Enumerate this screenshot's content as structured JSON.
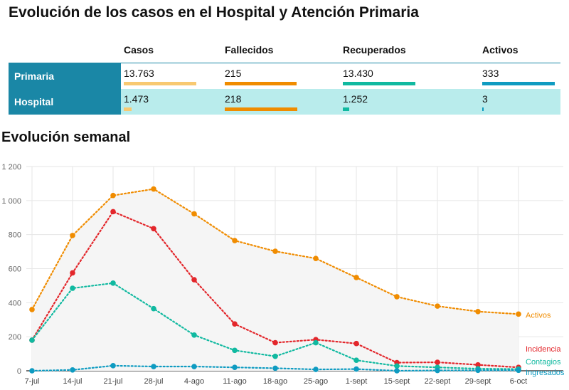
{
  "header": {
    "title": "Evolución de los casos en el Hospital y Atención Primaria"
  },
  "summary_table": {
    "columns": [
      "Casos",
      "Fallecidos",
      "Recuperados",
      "Activos"
    ],
    "column_colors": [
      "#f8c971",
      "#f08c00",
      "#10b9a0",
      "#0e9bc1"
    ],
    "rows": [
      {
        "label": "Primaria",
        "values": [
          "13.763",
          "215",
          "13.430",
          "333"
        ],
        "fractions": [
          1.0,
          0.986,
          1.0,
          1.0
        ]
      },
      {
        "label": "Hospital",
        "values": [
          "1.473",
          "218",
          "1.252",
          "3"
        ],
        "fractions": [
          0.107,
          1.0,
          0.093,
          0.009
        ]
      }
    ]
  },
  "section": {
    "subtitle": "Evolución semanal"
  },
  "chart_data": {
    "type": "line",
    "title": "",
    "xlabel": "",
    "ylabel": "",
    "categories": [
      "7-jul",
      "14-jul",
      "21-jul",
      "28-jul",
      "4-ago",
      "11-ago",
      "18-ago",
      "25-ago",
      "1-sept",
      "15-sept",
      "22-sept",
      "29-sept",
      "6-oct"
    ],
    "ylim": [
      0,
      1200
    ],
    "yticks": [
      0,
      200,
      400,
      600,
      800,
      1000,
      1200
    ],
    "ytick_labels": [
      "0",
      "200",
      "400",
      "600",
      "800",
      "1 000",
      "1 200"
    ],
    "grid": true,
    "series": [
      {
        "name": "Activos",
        "color": "#f08c00",
        "values": [
          360,
          795,
          1030,
          1068,
          922,
          765,
          702,
          660,
          548,
          435,
          380,
          348,
          333
        ]
      },
      {
        "name": "Incidencia",
        "color": "#e3262b",
        "values": [
          180,
          575,
          935,
          835,
          535,
          275,
          165,
          183,
          160,
          48,
          50,
          35,
          20
        ]
      },
      {
        "name": "Contagios",
        "color": "#10b9a0",
        "values": [
          180,
          485,
          515,
          365,
          210,
          120,
          85,
          165,
          62,
          28,
          20,
          12,
          10
        ]
      },
      {
        "name": "Ingresados",
        "color": "#0e9bc1",
        "values": [
          0,
          5,
          30,
          25,
          25,
          20,
          15,
          8,
          10,
          0,
          2,
          3,
          3
        ]
      }
    ]
  }
}
